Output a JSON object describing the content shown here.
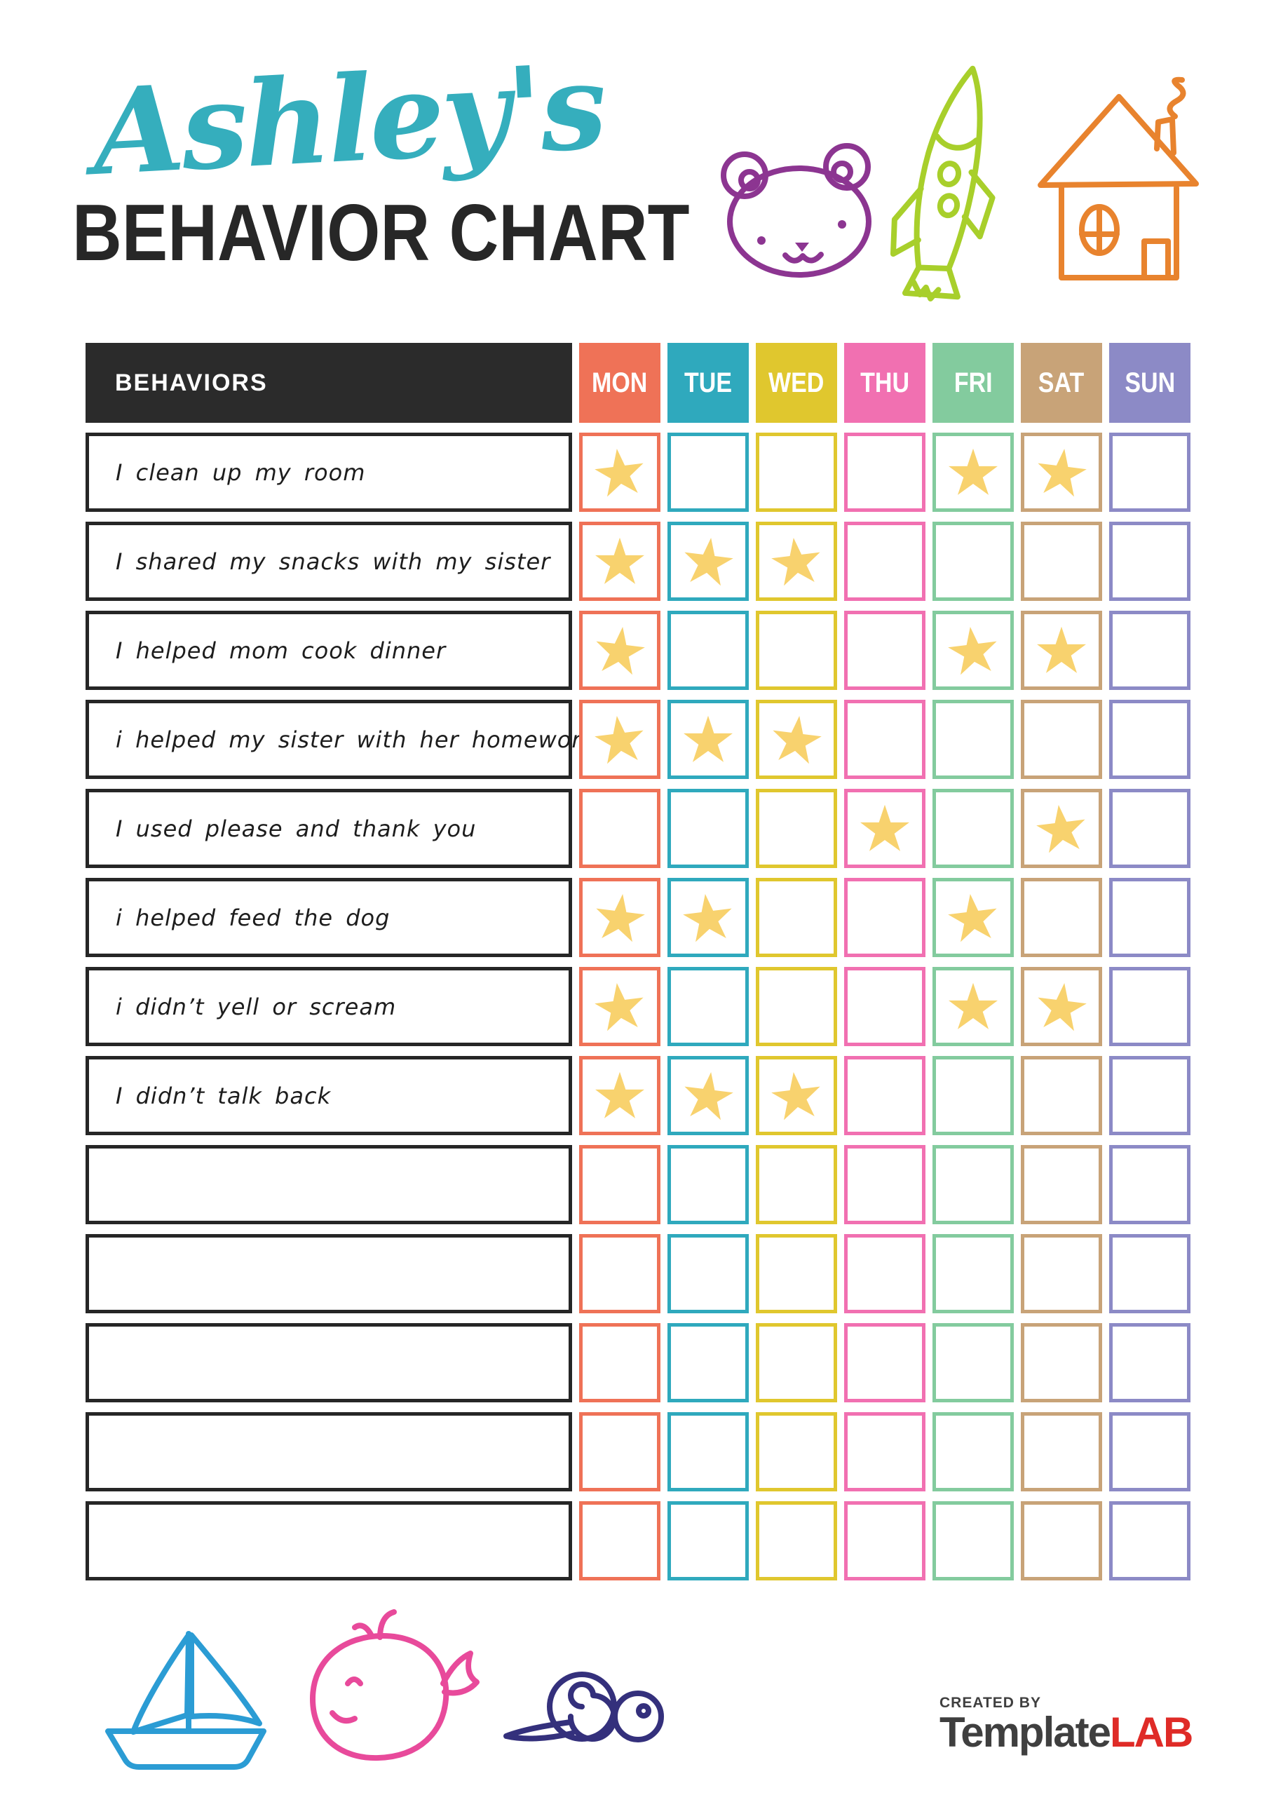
{
  "title": {
    "name_script": "Ashley's",
    "heading": "BEHAVIOR CHART"
  },
  "colors": {
    "title_script": "#35aebd",
    "heading": "#272727",
    "table_header_bg": "#2b2b2b",
    "star": "#f8d26e",
    "logo_gray": "#3f3f3f",
    "logo_red": "#df2b27"
  },
  "table": {
    "behaviors_header": "BEHAVIORS",
    "days": [
      {
        "label": "MON",
        "color": "#ef7257"
      },
      {
        "label": "TUE",
        "color": "#2fa9bd"
      },
      {
        "label": "WED",
        "color": "#e0c72e"
      },
      {
        "label": "THU",
        "color": "#f170b1"
      },
      {
        "label": "FRI",
        "color": "#83cb9e"
      },
      {
        "label": "SAT",
        "color": "#c8a378"
      },
      {
        "label": "SUN",
        "color": "#8c8ac6"
      }
    ],
    "rows": [
      {
        "behavior": "I clean up my room",
        "stars": [
          "MON",
          "FRI",
          "SAT"
        ]
      },
      {
        "behavior": "I shared my snacks with my sister",
        "stars": [
          "MON",
          "TUE",
          "WED"
        ]
      },
      {
        "behavior": "I helped mom cook dinner",
        "stars": [
          "MON",
          "FRI",
          "SAT"
        ]
      },
      {
        "behavior": "i helped my sister with her homework",
        "stars": [
          "MON",
          "TUE",
          "WED"
        ]
      },
      {
        "behavior": "I used please and thank you",
        "stars": [
          "THU",
          "SAT"
        ]
      },
      {
        "behavior": "i helped feed the dog",
        "stars": [
          "MON",
          "TUE",
          "FRI"
        ]
      },
      {
        "behavior": "i didn’t yell or scream",
        "stars": [
          "MON",
          "FRI",
          "SAT"
        ]
      },
      {
        "behavior": "I didn’t talk back",
        "stars": [
          "MON",
          "TUE",
          "WED"
        ]
      },
      {
        "behavior": "",
        "stars": []
      },
      {
        "behavior": "",
        "stars": []
      },
      {
        "behavior": "",
        "stars": []
      },
      {
        "behavior": "",
        "stars": []
      },
      {
        "behavior": "",
        "stars": []
      }
    ]
  },
  "doodles": {
    "bear_color": "#8c3591",
    "rocket_color": "#a8cf2b",
    "house_color": "#e8832e",
    "sailboat_color": "#2b9cd4",
    "whale_color": "#e84a9b",
    "snail_color": "#34307c"
  },
  "footer": {
    "created_by": "CREATED BY",
    "brand_primary": "Template",
    "brand_accent": "LAB"
  }
}
